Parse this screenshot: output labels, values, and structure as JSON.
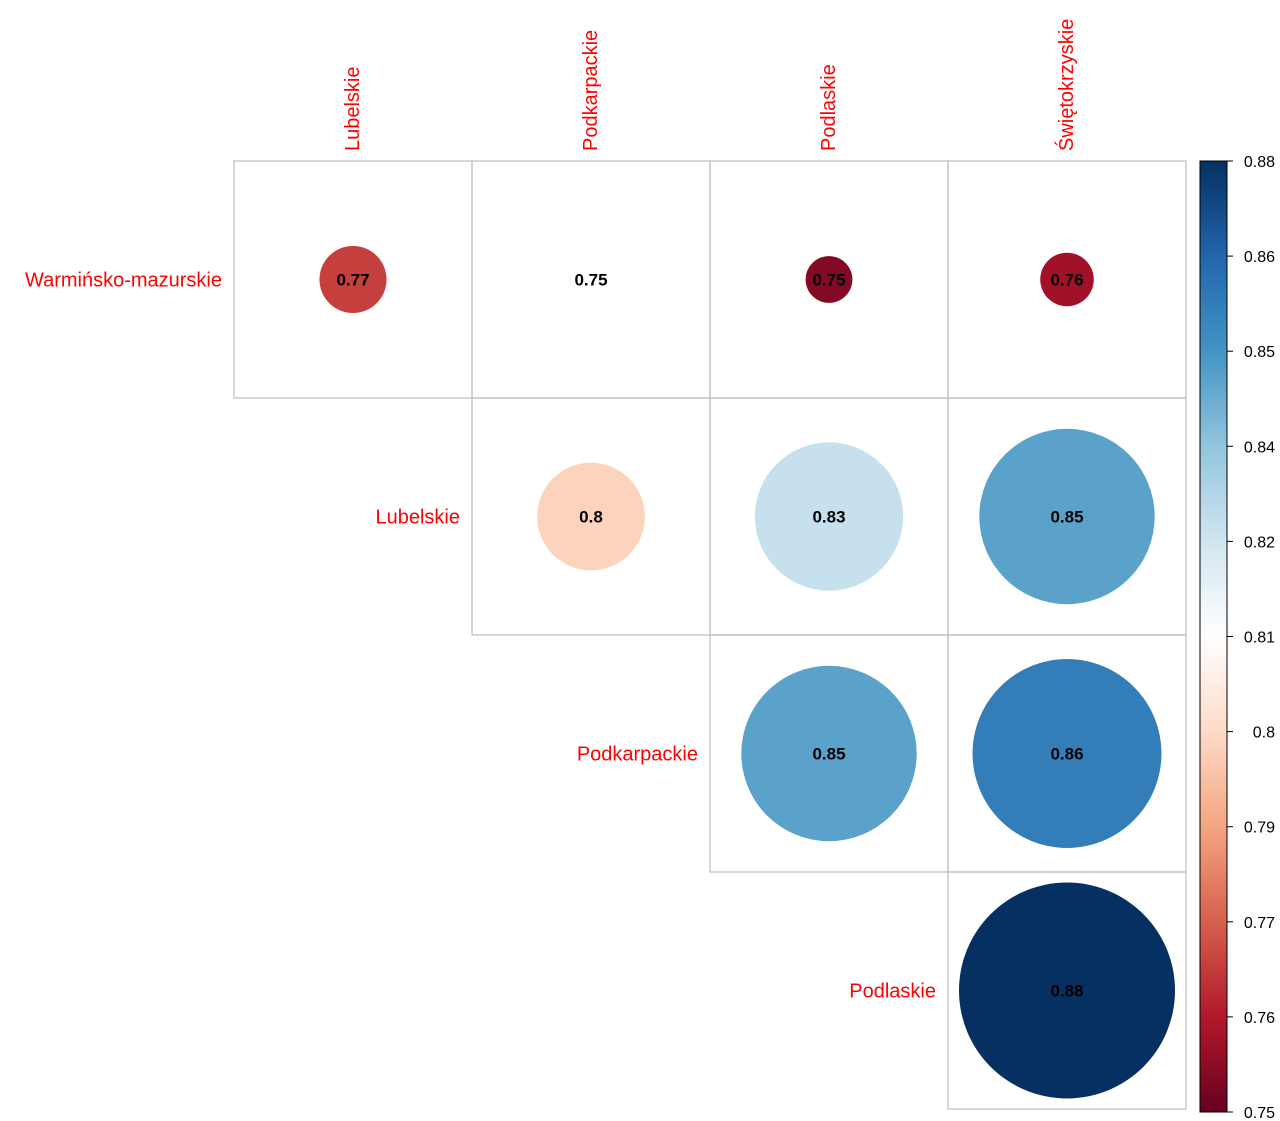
{
  "chart_data": {
    "type": "heatmap",
    "style": "corrplot-circle-upper",
    "columns": [
      "Lubelskie",
      "Podkarpackie",
      "Podlaskie",
      "Świętokrzyskie"
    ],
    "rows": [
      "Warmińsko-mazurskie",
      "Lubelskie",
      "Podkarpackie",
      "Podlaskie"
    ],
    "cells": [
      {
        "row": 0,
        "col": 0,
        "value": 0.77,
        "label": "0.77"
      },
      {
        "row": 0,
        "col": 1,
        "value": 0.75,
        "label": "0.75"
      },
      {
        "row": 0,
        "col": 2,
        "value": 0.755,
        "label": "0.75"
      },
      {
        "row": 0,
        "col": 3,
        "value": 0.76,
        "label": "0.76"
      },
      {
        "row": 1,
        "col": 1,
        "value": 0.8,
        "label": "0.8"
      },
      {
        "row": 1,
        "col": 2,
        "value": 0.83,
        "label": "0.83"
      },
      {
        "row": 1,
        "col": 3,
        "value": 0.85,
        "label": "0.85"
      },
      {
        "row": 2,
        "col": 2,
        "value": 0.85,
        "label": "0.85"
      },
      {
        "row": 2,
        "col": 3,
        "value": 0.86,
        "label": "0.86"
      },
      {
        "row": 3,
        "col": 3,
        "value": 0.88,
        "label": "0.88"
      }
    ],
    "color_scale": {
      "min": 0.75,
      "max": 0.88,
      "ticks": [
        "0.75",
        "0.76",
        "0.77",
        "0.79",
        "0.8",
        "0.81",
        "0.82",
        "0.84",
        "0.85",
        "0.86",
        "0.88"
      ],
      "colors": [
        "#67001F",
        "#B2182B",
        "#D6604D",
        "#F4A582",
        "#FDDBC7",
        "#FFFFFF",
        "#D1E5F0",
        "#92C5DE",
        "#4393C3",
        "#2166AC",
        "#053061"
      ]
    },
    "label_color": "#FF0000",
    "grid_color": "#BEBEBE",
    "legend_position": "right"
  }
}
